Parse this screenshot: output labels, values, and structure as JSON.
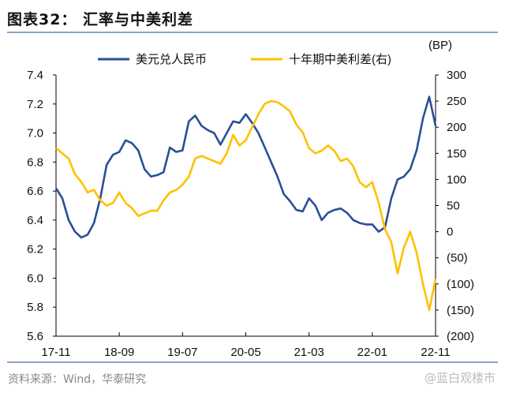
{
  "title": "图表32：  汇率与中美利差",
  "source": "资料来源：Wind，华泰研究",
  "watermark": "@蓝白观楼市",
  "chart_data": {
    "type": "line",
    "title": "汇率与中美利差",
    "right_unit": "(BP)",
    "x": [
      "17-11",
      "17-12",
      "18-01",
      "18-02",
      "18-03",
      "18-04",
      "18-05",
      "18-06",
      "18-07",
      "18-08",
      "18-09",
      "18-10",
      "18-11",
      "18-12",
      "19-01",
      "19-02",
      "19-03",
      "19-04",
      "19-05",
      "19-06",
      "19-07",
      "19-08",
      "19-09",
      "19-10",
      "19-11",
      "19-12",
      "20-01",
      "20-02",
      "20-03",
      "20-04",
      "20-05",
      "20-06",
      "20-07",
      "20-08",
      "20-09",
      "20-10",
      "20-11",
      "20-12",
      "21-01",
      "21-02",
      "21-03",
      "21-04",
      "21-05",
      "21-06",
      "21-07",
      "21-08",
      "21-09",
      "21-10",
      "21-11",
      "21-12",
      "22-01",
      "22-02",
      "22-03",
      "22-04",
      "22-05",
      "22-06",
      "22-07",
      "22-08",
      "22-09",
      "22-10",
      "22-11"
    ],
    "x_ticks": [
      "17-11",
      "18-09",
      "19-07",
      "20-05",
      "21-03",
      "22-01",
      "22-11"
    ],
    "left_axis": {
      "ylim": [
        5.6,
        7.4
      ],
      "ticks": [
        "7.4",
        "7.2",
        "7.0",
        "6.8",
        "6.6",
        "6.4",
        "6.2",
        "6.0",
        "5.8",
        "5.6"
      ]
    },
    "right_axis": {
      "ylim": [
        -200,
        300
      ],
      "ticks": [
        "300",
        "250",
        "200",
        "150",
        "100",
        "50",
        "0",
        "(50)",
        "(100)",
        "(150)",
        "(200)"
      ]
    },
    "legend_position": "top-center",
    "series": [
      {
        "name": "美元兑人民币",
        "axis": "left",
        "color": "#2a4f96",
        "values": [
          6.62,
          6.55,
          6.4,
          6.32,
          6.28,
          6.3,
          6.38,
          6.55,
          6.78,
          6.85,
          6.87,
          6.95,
          6.93,
          6.88,
          6.75,
          6.7,
          6.71,
          6.73,
          6.9,
          6.87,
          6.88,
          7.08,
          7.12,
          7.05,
          7.02,
          7.0,
          6.92,
          7.0,
          7.08,
          7.07,
          7.13,
          7.07,
          7.0,
          6.9,
          6.8,
          6.7,
          6.58,
          6.53,
          6.47,
          6.46,
          6.55,
          6.5,
          6.4,
          6.45,
          6.47,
          6.48,
          6.45,
          6.4,
          6.38,
          6.37,
          6.37,
          6.32,
          6.35,
          6.55,
          6.68,
          6.7,
          6.75,
          6.88,
          7.1,
          7.25,
          7.05
        ]
      },
      {
        "name": "十年期中美利差(右)",
        "axis": "right",
        "color": "#ffc000",
        "values": [
          160,
          150,
          140,
          110,
          95,
          75,
          80,
          60,
          50,
          55,
          75,
          55,
          45,
          30,
          35,
          40,
          40,
          60,
          75,
          80,
          90,
          105,
          140,
          145,
          140,
          135,
          130,
          150,
          185,
          165,
          175,
          200,
          225,
          245,
          250,
          248,
          240,
          230,
          205,
          190,
          160,
          150,
          155,
          165,
          155,
          135,
          140,
          125,
          95,
          85,
          95,
          55,
          5,
          -20,
          -80,
          -30,
          0,
          -40,
          -100,
          -150,
          -90
        ]
      }
    ]
  }
}
